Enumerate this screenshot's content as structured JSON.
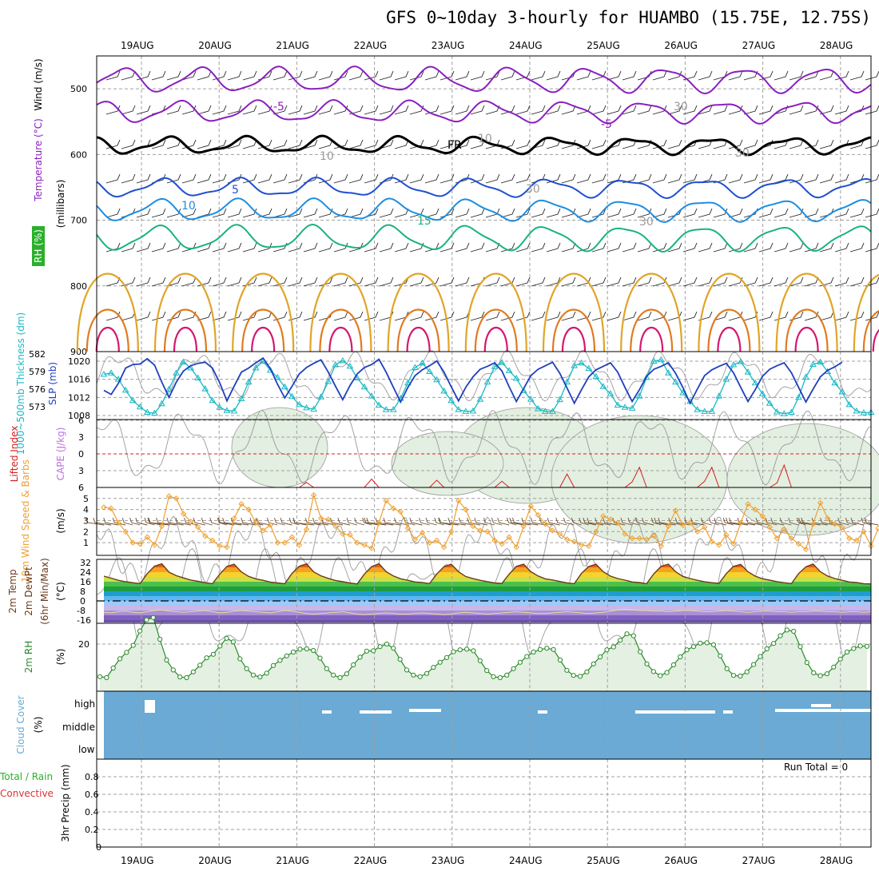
{
  "title": "GFS 0~10day 3-hourly for HUAMBO (15.75E, 12.75S)",
  "dates": [
    "19AUG",
    "20AUG",
    "21AUG",
    "22AUG",
    "23AUG",
    "24AUG",
    "25AUG",
    "26AUG",
    "27AUG",
    "28AUG"
  ],
  "colors": {
    "temp_minus5": "#8a1fbf",
    "freezing": "#000000",
    "temp_5": "#1f4fd1",
    "temp_10": "#1e8ee0",
    "temp_15": "#19b37d",
    "temp_20": "#e0a528",
    "temp_25": "#e07a1f",
    "temp_30": "#d4186e",
    "rh_contour": "#9a9a9a",
    "rh_fill": "#e3efe0",
    "slp": "#19b8c4",
    "thickness": "#1f3fbf",
    "lifted_index": "#d42020",
    "wind_speed": "#f0a030",
    "rh2m": "#2a8a2a",
    "cloud": "#6aaad4",
    "precip_total": "#2ab02a",
    "precip_convective": "#e03030"
  },
  "panel_labels": {
    "upper": [
      "Wind (m/s)",
      "Temperature (°C)",
      "RH (%)"
    ],
    "upper_unit": "(millibars)",
    "slp": "SLP (mb)",
    "thickness": "1000~500mb Thickness (dm)",
    "cape": "CAPE (J/kg)",
    "lifted": "Lifted Index",
    "wind10": "10m Wind Speed & Barbs",
    "wind10_unit": "(m/s)",
    "temp2m": "2m Temp",
    "dewpt2m": "2m DewPt",
    "temp_note": "(6hr Min/Max)",
    "temp_unit": "(°C)",
    "rh2m": "2m RH",
    "rh2m_unit": "(%)",
    "cloud": "Cloud Cover",
    "cloud_unit": "(%)",
    "precip_total": "Total / Rain",
    "precip_conv": "Convective",
    "precip": "3hr Precip (mm)"
  },
  "chart_data": [
    {
      "type": "line",
      "panel": "upper-air cross-section",
      "y_label": "(millibars)",
      "y_ticks": [
        500,
        600,
        700,
        800,
        900
      ],
      "ylim": [
        900,
        450
      ],
      "contour_labels": [
        "-5",
        "-5",
        "FR",
        "5",
        "10",
        "15",
        "10",
        "10",
        "30",
        "30",
        "30",
        "30"
      ]
    },
    {
      "type": "line",
      "panel": "slp-thickness",
      "slp_ticks": [
        1008,
        1012,
        1016,
        1020
      ],
      "thickness_ticks": [
        573,
        576,
        579,
        582
      ],
      "series": [
        {
          "name": "SLP (mb)",
          "values": [
            1017.1,
            1017.4,
            1016.0,
            1013.6,
            1011.3,
            1009.9,
            1008.7,
            1008.5,
            1010.6,
            1013.8,
            1017.4,
            1019.8,
            1018.5,
            1016.3,
            1013.9,
            1011.3,
            1009.8,
            1009.1,
            1009.0,
            1011.7,
            1015.4,
            1018.5,
            1020.0,
            1018.0,
            1016.4,
            1014.3,
            1012.2,
            1010.4,
            1009.7,
            1009.4,
            1012.1,
            1015.5,
            1019.2,
            1020.1,
            1018.9,
            1016.3,
            1014.3,
            1012.3,
            1010.3,
            1009.3,
            1009.3,
            1011.8,
            1015.2,
            1018.6,
            1019.6,
            1017.7,
            1015.9,
            1013.4,
            1011.3,
            1009.3,
            1008.9,
            1009.0,
            1011.6,
            1015.4,
            1018.8,
            1019.7,
            1017.9,
            1016.2,
            1013.5,
            1011.6,
            1009.5,
            1008.9,
            1008.9,
            1011.5,
            1015.4,
            1019.0,
            1019.6,
            1018.4,
            1016.6,
            1014.4,
            1012.8,
            1010.3,
            1009.8,
            1009.6,
            1012.3,
            1016.4,
            1020.0,
            1020.3,
            1017.4,
            1015.4,
            1013.0,
            1011.1,
            1009.3,
            1008.9,
            1008.9,
            1012.3,
            1016.0,
            1019.2,
            1019.9,
            1017.6,
            1015.2,
            1012.8,
            1010.7,
            1008.8,
            1008.4,
            1008.7,
            1012.0,
            1016.5,
            1019.3,
            1019.8,
            1017.7,
            1015.2,
            1013.2,
            1010.4,
            1009.0,
            1008.6,
            1008.7
          ]
        },
        {
          "name": "1000~500mb Thickness (dm)",
          "values": [
            575.8,
            575.1,
            577.0,
            579.6,
            580.2,
            580.3,
            581.2,
            580.1,
            577.2,
            574.6,
            577.2,
            579.1,
            580.0,
            580.4,
            580.6,
            579.6,
            577.1,
            574.0,
            576.5,
            578.9,
            579.6,
            580.5,
            581.3,
            579.5,
            576.8,
            574.5,
            576.5,
            578.6,
            579.7,
            580.4,
            581.0,
            578.9,
            576.5,
            574.2,
            576.6,
            578.6,
            579.7,
            580.2,
            581.1,
            578.9,
            576.3,
            573.8,
            576.3,
            578.3,
            579.3,
            580.0,
            580.8,
            578.9,
            576.4,
            574.0,
            576.3,
            578.1,
            579.4,
            579.9,
            580.5,
            579.1,
            576.4,
            573.9,
            576.1,
            578.3,
            579.4,
            580.0,
            580.6,
            578.7,
            576.2,
            573.6,
            575.9,
            578.1,
            579.3,
            579.9,
            580.5,
            578.9,
            576.3,
            573.9,
            575.9,
            578.2,
            579.4,
            579.9,
            580.5,
            578.7,
            576.3,
            573.6,
            576.0,
            578.3,
            579.3,
            579.9,
            580.4,
            578.8,
            576.3,
            573.9,
            575.9,
            578.2,
            579.4,
            580.0,
            580.5,
            578.8,
            576.3,
            573.8,
            576.0,
            578.1,
            579.2,
            579.8,
            580.6
          ]
        }
      ]
    },
    {
      "type": "line",
      "panel": "cape-lifted-index",
      "li_ticks": [
        -6,
        -3,
        0,
        3,
        6
      ],
      "series": [
        {
          "name": "Lifted Index",
          "values": [
            6,
            6,
            6,
            6,
            6,
            6,
            6,
            6,
            6,
            6,
            6,
            6,
            6,
            6,
            6,
            6,
            6,
            6,
            6,
            6,
            6,
            6,
            6,
            6,
            6,
            6,
            6,
            6,
            5.1,
            6,
            6,
            6,
            6,
            6,
            6,
            6,
            6,
            4.5,
            6,
            6,
            6,
            6,
            6,
            6,
            6,
            6,
            4.7,
            6,
            6,
            6,
            6,
            6,
            6,
            6,
            6,
            4.9,
            6,
            6,
            6,
            6,
            6,
            6,
            6,
            6,
            3.6,
            6,
            6,
            6,
            6,
            6,
            6,
            6,
            6,
            5.0,
            2.4,
            6,
            6,
            6,
            6,
            6,
            6,
            6,
            6,
            4.9,
            2.4,
            6,
            6,
            6,
            6,
            6,
            6,
            6,
            6,
            5.2,
            2.0,
            6,
            6,
            6,
            6,
            6,
            6
          ]
        }
      ]
    },
    {
      "type": "line",
      "panel": "10m-wind",
      "y_ticks": [
        1,
        2,
        3,
        4,
        5
      ],
      "series": [
        {
          "name": "10m Wind Speed",
          "values": [
            4.2,
            4.1,
            2.8,
            2.0,
            1.0,
            0.9,
            1.5,
            0.8,
            2.5,
            5.2,
            5.0,
            3.6,
            2.9,
            2.4,
            1.6,
            1.2,
            0.7,
            0.6,
            3.2,
            4.5,
            4.0,
            2.8,
            2.1,
            2.6,
            1.0,
            1.0,
            1.5,
            0.8,
            2.2,
            5.3,
            3.2,
            3.1,
            2.5,
            1.8,
            1.7,
            1.0,
            0.8,
            0.5,
            2.8,
            4.8,
            4.1,
            3.8,
            2.3,
            1.3,
            1.9,
            1.0,
            1.2,
            0.6,
            2.0,
            4.8,
            4.0,
            2.5,
            2.1,
            2.0,
            1.2,
            0.9,
            1.5,
            0.6,
            2.5,
            4.3,
            3.5,
            2.7,
            2.1,
            1.8,
            1.3,
            1.1,
            0.8,
            0.7,
            2.0,
            3.4,
            3.1,
            2.8,
            1.8,
            1.4,
            1.4,
            1.3,
            1.6,
            0.7,
            2.5,
            3.9,
            2.6,
            2.8,
            2.0,
            2.4,
            1.1,
            0.8,
            1.7,
            0.9,
            2.8,
            4.5,
            4.0,
            3.4,
            2.4,
            1.4,
            2.2,
            1.4,
            0.9,
            0.4,
            2.7,
            4.6,
            3.2,
            2.7,
            2.4,
            1.4,
            1.2,
            2.0,
            0.7,
            2.3
          ]
        }
      ]
    },
    {
      "type": "area",
      "panel": "2m-temperature",
      "y_ticks": [
        -16,
        -8,
        0,
        8,
        16,
        24,
        32
      ],
      "series": [
        {
          "name": "2m Temp",
          "values": [
            20.7,
            19.0,
            17.2,
            16.0,
            15.2,
            14.5,
            22.8,
            29.0,
            30.9,
            24.0,
            21.1,
            19.2,
            17.4,
            16.3,
            15.2,
            14.4,
            22.2,
            28.8,
            30.7,
            24.2,
            20.5,
            18.4,
            17.2,
            15.7,
            15.0,
            14.4,
            23.0,
            28.9,
            30.9,
            24.2,
            20.9,
            18.8,
            17.1,
            16.0,
            14.9,
            14.2,
            22.4,
            28.6,
            31.0,
            24.4,
            20.8,
            18.5,
            17.2,
            15.8,
            15.4,
            14.5,
            22.5,
            28.6,
            30.7,
            24.4,
            20.4,
            18.6,
            17.2,
            16.1,
            15.0,
            14.6,
            22.3,
            28.8,
            30.7,
            24.4,
            20.8,
            18.4,
            17.5,
            16.2,
            15.1,
            14.4,
            23.0,
            28.7,
            30.7,
            24.3,
            20.7,
            18.7,
            17.3,
            15.8,
            15.3,
            14.4,
            22.7,
            28.9,
            30.7,
            24.3,
            20.5,
            18.7,
            17.2,
            15.9,
            15.2,
            14.7,
            22.8,
            28.8,
            30.5,
            24.3,
            20.7,
            18.5,
            17.3,
            16.1,
            15.2,
            14.5,
            22.8,
            28.5,
            30.8,
            24.3,
            20.8,
            18.7,
            17.2,
            15.8,
            15.4,
            14.4,
            14.2
          ]
        },
        {
          "name": "2m DewPt",
          "values": [
            -9.5,
            -10.0,
            -9.0,
            -8.5,
            -9.5,
            -10.0,
            -9.0,
            -8.0,
            -7.5,
            -8.5,
            -9.0,
            -9.5,
            -9.0,
            -8.5,
            -8.0,
            -9.0,
            -10.0,
            -9.5,
            -8.5,
            -8.0,
            -8.5,
            -9.0,
            -9.5,
            -10.0,
            -9.0,
            -8.0,
            -8.5,
            -9.5,
            -10.5,
            -11.0,
            -10.5,
            -10.0,
            -9.5,
            -9.0,
            -10.0,
            -11.0,
            -11.5,
            -11.0,
            -10.5,
            -10.0,
            -10.5,
            -11.0,
            -11.0,
            -10.5,
            -10.0,
            -10.5,
            -11.0,
            -11.5,
            -11.0,
            -10.0,
            -9.5,
            -10.0,
            -10.5,
            -11.0,
            -10.5,
            -10.0,
            -9.5,
            -9.0,
            -9.5,
            -10.0,
            -10.5,
            -10.5,
            -10.0,
            -9.5,
            -9.0,
            -9.5,
            -10.0,
            -10.5,
            -10.0,
            -9.5,
            -8.5,
            -7.5,
            -7.0,
            -7.5,
            -8.0,
            -8.0,
            -8.5,
            -8.5,
            -9.0,
            -8.5,
            -8.0,
            -8.0,
            -8.5,
            -9.0,
            -9.0,
            -8.5,
            -8.0,
            -8.5,
            -9.0,
            -9.5,
            -9.0,
            -8.5,
            -8.5,
            -9.0,
            -9.0,
            -9.5,
            -9.0,
            -9.0,
            -8.5,
            -8.5,
            -9.0,
            -9.0,
            -9.5,
            -9.0,
            -9.0,
            -9.5,
            -9.0
          ]
        }
      ]
    },
    {
      "type": "area",
      "panel": "2m-rh",
      "y_ticks": [
        20
      ],
      "series": [
        {
          "name": "2m RH",
          "values": [
            9.8,
            9.5,
            12.5,
            15.4,
            17.4,
            19.6,
            24.1,
            27.6,
            28.3,
            21.5,
            15.0,
            11.9,
            9.7,
            9.5,
            11.3,
            13.4,
            15.7,
            16.8,
            19.4,
            21.8,
            20.7,
            15.4,
            12.3,
            10.3,
            9.7,
            10.9,
            13.3,
            14.9,
            16.3,
            17.5,
            18.4,
            18.5,
            18.0,
            15.6,
            12.3,
            10.3,
            9.5,
            10.7,
            13.5,
            15.9,
            17.8,
            17.9,
            19.2,
            20.0,
            18.7,
            15.2,
            11.9,
            10.3,
            9.8,
            10.8,
            12.7,
            14.3,
            15.8,
            17.6,
            18.2,
            18.4,
            17.9,
            14.8,
            11.7,
            9.8,
            9.5,
            10.3,
            12.3,
            14.3,
            16.1,
            17.5,
            18.3,
            18.7,
            18.3,
            15.0,
            11.8,
            10.2,
            9.9,
            11.3,
            13.8,
            16.0,
            18.2,
            19.1,
            21.2,
            23.2,
            22.6,
            17.6,
            13.8,
            11.4,
            10.1,
            11.1,
            13.5,
            16.0,
            18.2,
            19.2,
            20.3,
            20.4,
            19.8,
            16.3,
            12.3,
            10.2,
            10.0,
            11.3,
            13.6,
            16.1,
            18.5,
            20.2,
            22.6,
            24.4,
            24.0,
            19.2,
            14.2,
            11.0,
            10.1,
            10.7,
            12.8,
            15.3,
            17.5,
            18.6,
            19.4,
            19.3
          ]
        }
      ]
    },
    {
      "type": "bar",
      "panel": "cloud-cover",
      "y_ticks": [
        "high",
        "middle",
        "low"
      ],
      "values": []
    },
    {
      "type": "bar",
      "panel": "3hr-precip",
      "y_ticks": [
        0,
        0.2,
        0.4,
        0.6,
        0.8
      ],
      "ylim": [
        0,
        1
      ],
      "run_total": "Run Total = 0",
      "series": [
        {
          "name": "Total / Rain",
          "values": []
        },
        {
          "name": "Convective",
          "values": []
        }
      ]
    }
  ]
}
